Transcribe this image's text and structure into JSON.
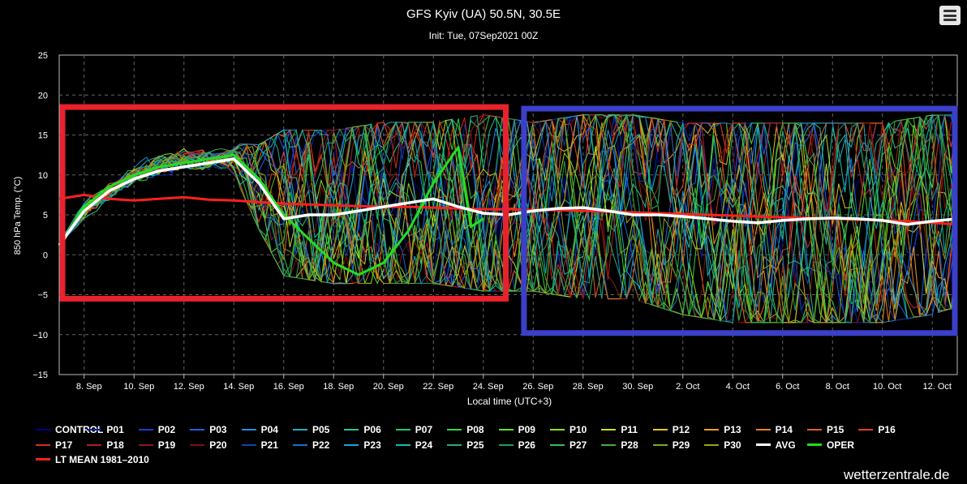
{
  "title": "GFS Kyiv (UA) 50.5N, 30.5E",
  "subtitle": "Init: Tue, 07Sep2021 00Z",
  "credit": "wetterzentrale.de",
  "colors": {
    "background": "#000000",
    "avg": "#ffffff",
    "oper": "#22dd22",
    "lt_mean": "#ff2020",
    "highlight_box_red": "#e8222c",
    "highlight_box_blue": "#3b3fc9"
  },
  "chart_data": {
    "type": "line",
    "title": "GFS Kyiv (UA) 50.5N, 30.5E",
    "subtitle": "Init: Tue, 07Sep2021 00Z",
    "xlabel": "Local time (UTC+3)",
    "ylabel": "850 hPa Temp. (°C)",
    "ylim": [
      -15,
      25
    ],
    "xlim": [
      "2021-09-07",
      "2021-10-13"
    ],
    "yticks": [
      "25",
      "20",
      "15",
      "10",
      "5",
      "0",
      "−5",
      "−10",
      "−15"
    ],
    "xticks": [
      "8. Sep",
      "10. Sep",
      "12. Sep",
      "14. Sep",
      "16. Sep",
      "18. Sep",
      "20. Sep",
      "22. Sep",
      "24. Sep",
      "26. Sep",
      "28. Sep",
      "30. Sep",
      "2. Oct",
      "4. Oct",
      "6. Oct",
      "8. Oct",
      "10. Oct",
      "12. Oct"
    ],
    "grid": true,
    "legend_position": "bottom",
    "ensemble_members": [
      "CONTROL",
      "P01",
      "P02",
      "P03",
      "P04",
      "P05",
      "P06",
      "P07",
      "P08",
      "P09",
      "P10",
      "P11",
      "P12",
      "P13",
      "P14",
      "P15",
      "P16",
      "P17",
      "P18",
      "P19",
      "P20",
      "P21",
      "P22",
      "P23",
      "P24",
      "P25",
      "P26",
      "P27",
      "P28",
      "P29",
      "P30"
    ],
    "ensemble_colors": [
      "#000090",
      "#0a1fb0",
      "#1a3fd0",
      "#2060e8",
      "#1e90e0",
      "#20b0c8",
      "#20c8a0",
      "#20c870",
      "#30d840",
      "#60e030",
      "#90e020",
      "#c8e020",
      "#e8c820",
      "#f0a020",
      "#f08020",
      "#e86020",
      "#e84020",
      "#d03020",
      "#b02018",
      "#901818",
      "#801010",
      "#1040b0",
      "#1870d0",
      "#20a0e0",
      "#10c0b0",
      "#20b080",
      "#18a060",
      "#30c050",
      "#40b030",
      "#70b020",
      "#a0a010"
    ],
    "ensemble_spread": {
      "x": [
        "2021-09-07",
        "2021-09-08",
        "2021-09-09",
        "2021-09-10",
        "2021-09-11",
        "2021-09-12",
        "2021-09-13",
        "2021-09-14",
        "2021-09-15",
        "2021-09-16",
        "2021-09-18",
        "2021-09-20",
        "2021-09-22",
        "2021-09-24",
        "2021-09-26",
        "2021-09-28",
        "2021-09-30",
        "2021-10-02",
        "2021-10-04",
        "2021-10-06",
        "2021-10-08",
        "2021-10-10",
        "2021-10-12",
        "2021-10-13"
      ],
      "low": [
        0.5,
        4,
        6,
        8,
        9,
        10,
        10,
        10,
        3,
        -3,
        -4,
        -4,
        -4,
        -5,
        -5,
        -6,
        -6,
        -8,
        -9,
        -9,
        -9,
        -9,
        -8,
        -7
      ],
      "high": [
        2,
        7,
        9.5,
        12,
        13.5,
        14,
        14,
        14,
        14,
        16,
        16,
        17,
        17,
        18,
        17,
        18,
        18,
        17,
        17,
        17,
        17,
        17,
        18,
        18
      ]
    },
    "series": [
      {
        "name": "AVG",
        "x": [
          "2021-09-07",
          "2021-09-08",
          "2021-09-09",
          "2021-09-10",
          "2021-09-11",
          "2021-09-12",
          "2021-09-13",
          "2021-09-14",
          "2021-09-15",
          "2021-09-16",
          "2021-09-17",
          "2021-09-18",
          "2021-09-19",
          "2021-09-20",
          "2021-09-21",
          "2021-09-22",
          "2021-09-23",
          "2021-09-24",
          "2021-09-25",
          "2021-09-26",
          "2021-09-27",
          "2021-09-28",
          "2021-09-29",
          "2021-09-30",
          "2021-10-01",
          "2021-10-02",
          "2021-10-03",
          "2021-10-04",
          "2021-10-05",
          "2021-10-06",
          "2021-10-07",
          "2021-10-08",
          "2021-10-09",
          "2021-10-10",
          "2021-10-11",
          "2021-10-12",
          "2021-10-13"
        ],
        "values": [
          1.2,
          5.5,
          8.0,
          9.5,
          10.5,
          11.0,
          11.5,
          12.0,
          9.0,
          4.5,
          5.0,
          5.0,
          5.5,
          6.0,
          6.5,
          7.0,
          6.0,
          5.2,
          5.0,
          5.5,
          5.8,
          5.9,
          5.5,
          5.0,
          5.0,
          4.8,
          4.5,
          4.2,
          4.0,
          4.3,
          4.5,
          4.6,
          4.5,
          4.3,
          3.8,
          4.2,
          4.5
        ]
      },
      {
        "name": "OPER",
        "x": [
          "2021-09-07",
          "2021-09-08",
          "2021-09-09",
          "2021-09-10",
          "2021-09-11",
          "2021-09-12",
          "2021-09-13",
          "2021-09-14",
          "2021-09-15",
          "2021-09-16",
          "2021-09-17",
          "2021-09-18",
          "2021-09-19",
          "2021-09-20",
          "2021-09-21",
          "2021-09-22",
          "2021-09-23",
          "2021-09-23.5",
          "2021-09-24"
        ],
        "values": [
          1.0,
          6.0,
          8.5,
          10.0,
          11.0,
          11.5,
          12.0,
          12.5,
          9.5,
          5.0,
          2.0,
          -1.0,
          -2.5,
          -1.0,
          3.0,
          9.0,
          13.5,
          3.5,
          4.5
        ]
      },
      {
        "name": "LT MEAN 1981-2010",
        "x": [
          "2021-09-07",
          "2021-09-08",
          "2021-09-09",
          "2021-09-10",
          "2021-09-11",
          "2021-09-12",
          "2021-09-13",
          "2021-09-14",
          "2021-09-15",
          "2021-09-16",
          "2021-09-17",
          "2021-09-18",
          "2021-09-19",
          "2021-09-20",
          "2021-09-21",
          "2021-09-22",
          "2021-09-23",
          "2021-09-24",
          "2021-09-25",
          "2021-09-26",
          "2021-09-27",
          "2021-09-28",
          "2021-09-29",
          "2021-09-30",
          "2021-10-01",
          "2021-10-02",
          "2021-10-03",
          "2021-10-04",
          "2021-10-05",
          "2021-10-06",
          "2021-10-07",
          "2021-10-08",
          "2021-10-09",
          "2021-10-10",
          "2021-10-11",
          "2021-10-12",
          "2021-10-13"
        ],
        "values": [
          7.0,
          7.5,
          7.0,
          6.8,
          7.0,
          7.2,
          6.9,
          6.8,
          6.6,
          6.4,
          6.3,
          6.2,
          6.1,
          6.0,
          6.0,
          5.9,
          5.8,
          5.7,
          5.7,
          5.6,
          5.6,
          5.5,
          5.4,
          5.3,
          5.2,
          5.1,
          5.0,
          4.9,
          4.8,
          4.7,
          4.6,
          4.5,
          4.4,
          4.3,
          4.2,
          4.0,
          3.8
        ]
      }
    ],
    "annotations": [
      {
        "shape": "rectangle",
        "color": "red",
        "x": [
          "2021-09-07",
          "2021-09-25"
        ],
        "y": [
          -5.5,
          18.5
        ]
      },
      {
        "shape": "rectangle",
        "color": "blue",
        "x": [
          "2021-09-25.5",
          "2021-10-13"
        ],
        "y": [
          -9.8,
          18.3
        ]
      }
    ]
  },
  "legend": {
    "items": [
      {
        "label": "CONTROL",
        "color": "#000090"
      },
      {
        "label": "P01",
        "color": "#0a1fb0"
      },
      {
        "label": "P02",
        "color": "#1a3fd0"
      },
      {
        "label": "P03",
        "color": "#2060e8"
      },
      {
        "label": "P04",
        "color": "#1e90e0"
      },
      {
        "label": "P05",
        "color": "#20b0c8"
      },
      {
        "label": "P06",
        "color": "#20c8a0"
      },
      {
        "label": "P07",
        "color": "#20c870"
      },
      {
        "label": "P08",
        "color": "#30d840"
      },
      {
        "label": "P09",
        "color": "#60e030"
      },
      {
        "label": "P10",
        "color": "#90e020"
      },
      {
        "label": "P11",
        "color": "#c8e020"
      },
      {
        "label": "P12",
        "color": "#e8c820"
      },
      {
        "label": "P13",
        "color": "#f0a020"
      },
      {
        "label": "P14",
        "color": "#f08020"
      },
      {
        "label": "P15",
        "color": "#e86020"
      },
      {
        "label": "P16",
        "color": "#e84020"
      },
      {
        "label": "P17",
        "color": "#d03020"
      },
      {
        "label": "P18",
        "color": "#b02018"
      },
      {
        "label": "P19",
        "color": "#901818"
      },
      {
        "label": "P20",
        "color": "#801010"
      },
      {
        "label": "P21",
        "color": "#1040b0"
      },
      {
        "label": "P22",
        "color": "#1870d0"
      },
      {
        "label": "P23",
        "color": "#20a0e0"
      },
      {
        "label": "P24",
        "color": "#10c0b0"
      },
      {
        "label": "P25",
        "color": "#20b080"
      },
      {
        "label": "P26",
        "color": "#18a060"
      },
      {
        "label": "P27",
        "color": "#30c050"
      },
      {
        "label": "P28",
        "color": "#40b030"
      },
      {
        "label": "P29",
        "color": "#70b020"
      },
      {
        "label": "P30",
        "color": "#a0a010"
      },
      {
        "label": "AVG",
        "color": "#ffffff"
      },
      {
        "label": "OPER",
        "color": "#22dd22"
      },
      {
        "label": "LT MEAN 1981–2010",
        "color": "#ff2020"
      }
    ]
  }
}
